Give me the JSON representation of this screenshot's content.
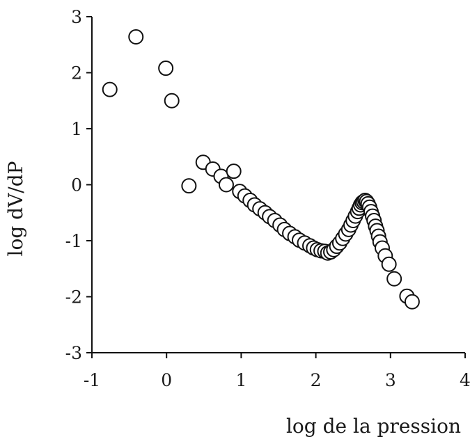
{
  "chart_data": {
    "type": "scatter",
    "title": "",
    "xlabel": "log de la pression",
    "ylabel": "log dV/dP",
    "xlim": [
      -1,
      4
    ],
    "ylim": [
      -3,
      3
    ],
    "x_ticks": [
      "-1",
      "0",
      "1",
      "2",
      "3",
      "4"
    ],
    "y_ticks": [
      "-3",
      "-2",
      "-1",
      "0",
      "1",
      "2",
      "3"
    ],
    "grid": false,
    "legend": "none",
    "marker": "open-circle",
    "series": [
      {
        "x": [
          -0.76,
          -0.41,
          -0.01,
          0.07,
          0.3,
          0.49,
          0.62,
          0.73,
          0.8,
          0.9,
          0.98,
          1.05,
          1.12,
          1.18,
          1.25,
          1.32,
          1.38,
          1.45,
          1.52,
          1.58,
          1.65,
          1.72,
          1.78,
          1.85,
          1.92,
          1.97,
          2.02,
          2.07,
          2.12,
          2.16,
          2.2,
          2.24,
          2.28,
          2.32,
          2.36,
          2.4,
          2.44,
          2.47,
          2.5,
          2.53,
          2.56,
          2.58,
          2.6,
          2.62,
          2.64,
          2.66,
          2.68,
          2.7,
          2.72,
          2.74,
          2.76,
          2.78,
          2.8,
          2.82,
          2.84,
          2.86,
          2.89,
          2.93,
          2.98,
          3.05,
          3.22,
          3.29
        ],
        "y": [
          1.7,
          2.64,
          2.08,
          1.5,
          -0.02,
          0.4,
          0.28,
          0.15,
          0.0,
          0.24,
          -0.12,
          -0.2,
          -0.28,
          -0.36,
          -0.43,
          -0.5,
          -0.57,
          -0.64,
          -0.72,
          -0.8,
          -0.87,
          -0.93,
          -0.99,
          -1.04,
          -1.09,
          -1.13,
          -1.16,
          -1.18,
          -1.19,
          -1.22,
          -1.2,
          -1.16,
          -1.1,
          -1.04,
          -0.96,
          -0.88,
          -0.8,
          -0.72,
          -0.64,
          -0.56,
          -0.48,
          -0.42,
          -0.36,
          -0.32,
          -0.3,
          -0.28,
          -0.3,
          -0.34,
          -0.4,
          -0.48,
          -0.56,
          -0.64,
          -0.74,
          -0.82,
          -0.92,
          -1.02,
          -1.13,
          -1.27,
          -1.42,
          -1.68,
          -1.99,
          -2.09
        ]
      }
    ]
  }
}
